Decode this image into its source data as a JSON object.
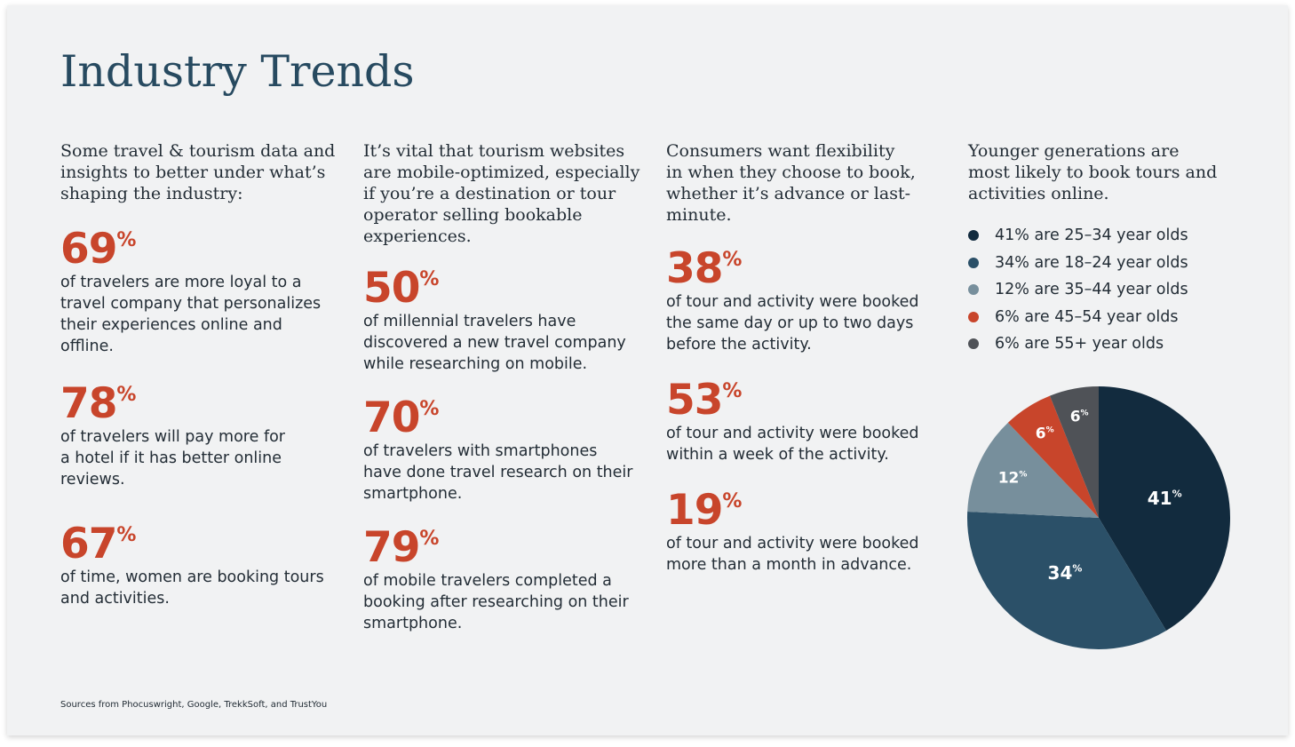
{
  "page": {
    "title": "Industry Trends",
    "source_note": "Sources from Phocuswright, Google, TrekkSoft, and TrustYou"
  },
  "columns": [
    {
      "intro": [
        "Some travel & tourism data and",
        "insights to better under what’s",
        "shaping the industry:"
      ],
      "stats": [
        {
          "value": "69",
          "suffix": "%",
          "text": [
            "of travelers are more loyal to a",
            "travel company that personalizes",
            "their experiences online and",
            "offline."
          ]
        },
        {
          "value": "78",
          "suffix": "%",
          "text": [
            "of travelers will pay more for",
            "a hotel if it has better online",
            "reviews."
          ]
        },
        {
          "value": "67",
          "suffix": "%",
          "text": [
            "of time, women are booking tours",
            "and activities."
          ]
        }
      ]
    },
    {
      "intro": [
        "It’s vital that tourism websites",
        "are mobile-optimized, especially",
        "if you’re a destination or tour",
        "operator selling bookable",
        "experiences."
      ],
      "stats": [
        {
          "value": "50",
          "suffix": "%",
          "text": [
            "of millennial travelers have",
            "discovered a new travel company",
            "while researching on mobile."
          ]
        },
        {
          "value": "70",
          "suffix": "%",
          "text": [
            "of travelers with smartphones",
            "have done travel research on their",
            "smartphone."
          ]
        },
        {
          "value": "79",
          "suffix": "%",
          "text": [
            "of mobile travelers completed a",
            "booking after researching on their",
            "smartphone."
          ]
        }
      ]
    },
    {
      "intro": [
        "Consumers want flexibility",
        "in when they choose to book,",
        "whether it’s advance or last-",
        "minute."
      ],
      "stats": [
        {
          "value": "38",
          "suffix": "%",
          "text": [
            "of tour and activity were booked",
            "the same day or up to two days",
            "before the activity."
          ]
        },
        {
          "value": "53",
          "suffix": "%",
          "text": [
            "of tour and activity were booked",
            "within a week of the activity."
          ]
        },
        {
          "value": "19",
          "suffix": "%",
          "text": [
            "of tour and activity were booked",
            "more than a month in advance."
          ]
        }
      ]
    },
    {
      "intro": [
        "Younger generations are",
        "most likely to book tours and",
        "activities online."
      ]
    }
  ],
  "colors": {
    "title": "#274a60",
    "accent": "#c8452b",
    "text": "#232d36",
    "background": "#f1f2f3"
  },
  "chart_data": {
    "type": "pie",
    "legend_position": "top",
    "categories": [
      "25-34 year olds",
      "18-24 year olds",
      "35-44 year olds",
      "45-54 year olds",
      "55+ year olds"
    ],
    "values": [
      41,
      34,
      12,
      6,
      6
    ],
    "slice_labels": [
      "41",
      "34",
      "12",
      "6",
      "6"
    ],
    "label_suffix": "%",
    "colors": [
      "#122b3e",
      "#2b5068",
      "#778f9c",
      "#c8452b",
      "#4f5257"
    ],
    "legend": [
      "41% are 25–34 year olds",
      "34% are 18–24 year olds",
      "12% are 35–44 year olds",
      "6% are 45–54 year olds",
      "6% are 55+  year olds"
    ]
  }
}
